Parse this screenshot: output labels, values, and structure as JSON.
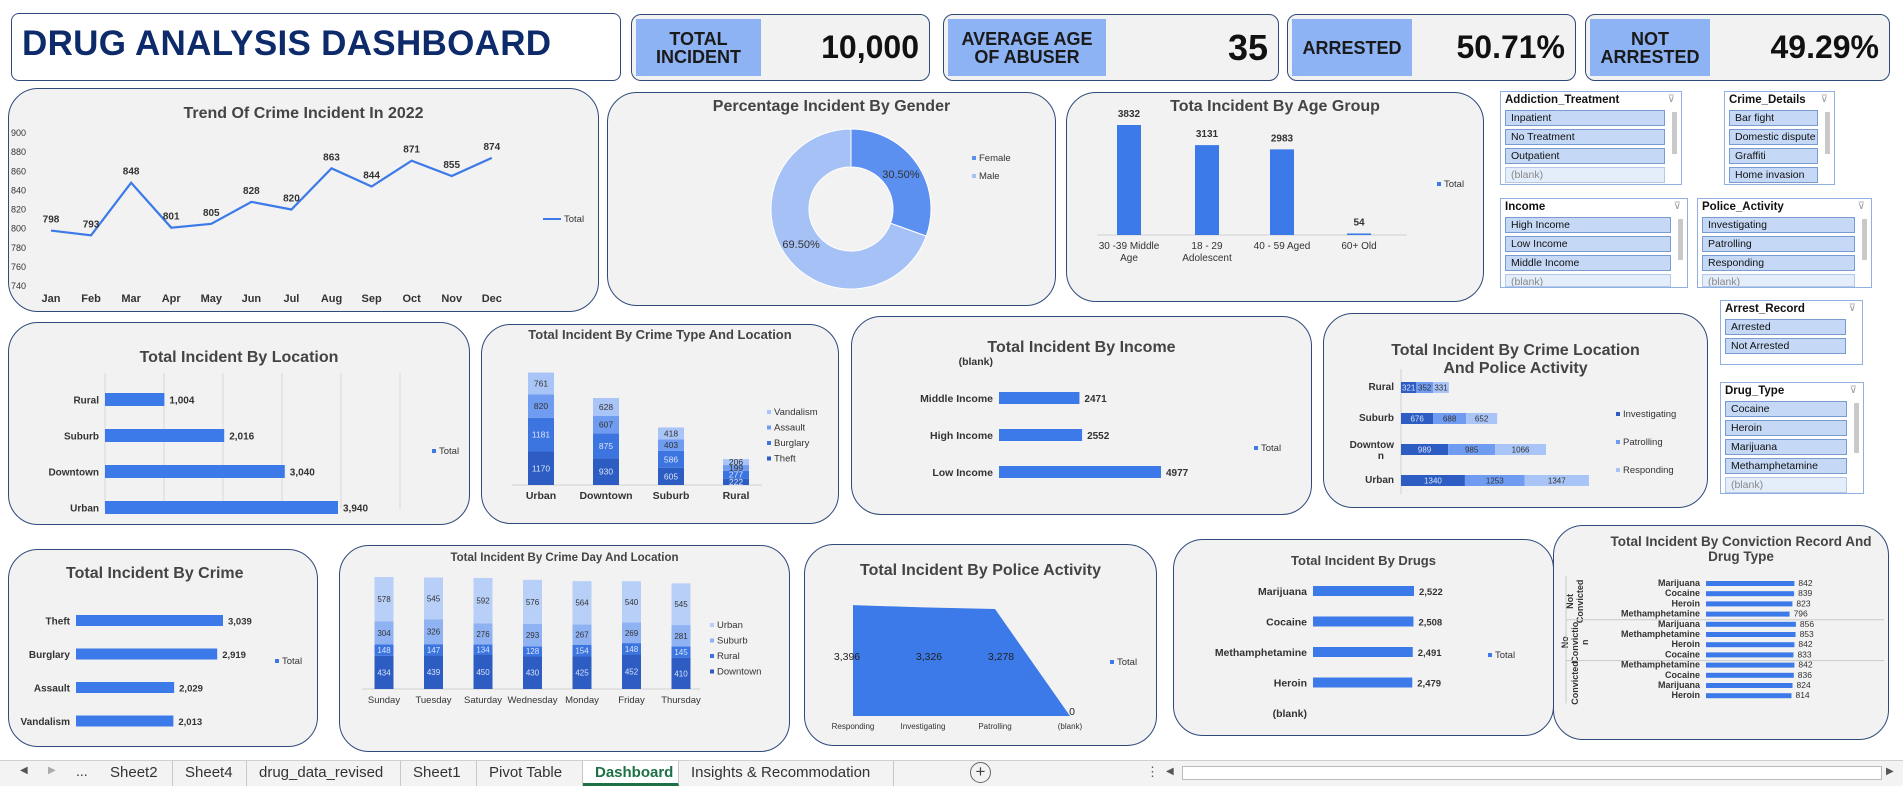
{
  "title": "DRUG ANALYSIS DASHBOARD",
  "kpis": [
    {
      "label": "TOTAL INCIDENT",
      "value": "10,000"
    },
    {
      "label": "AVERAGE AGE OF ABUSER",
      "value": "35"
    },
    {
      "label": "ARRESTED",
      "value": "50.71%"
    },
    {
      "label": "NOT ARRESTED",
      "value": "49.29%"
    }
  ],
  "colors": {
    "accent": "#3b7ae8",
    "mid": "#5b8ff0",
    "light": "#a6c1f5",
    "dark": "#2c5bbd",
    "border": "#2f4a7a",
    "title": "#0d2a6b"
  },
  "charts": {
    "trend": {
      "type": "line",
      "title": "Trend Of Crime Incident In 2022",
      "x": [
        "Jan",
        "Feb",
        "Mar",
        "Apr",
        "May",
        "Jun",
        "Jul",
        "Aug",
        "Sep",
        "Oct",
        "Nov",
        "Dec"
      ],
      "values": [
        798,
        793,
        848,
        801,
        805,
        828,
        820,
        863,
        844,
        871,
        855,
        874
      ],
      "ylim": [
        740,
        900
      ],
      "yticks": [
        "740",
        "760",
        "780",
        "800",
        "820",
        "840",
        "860",
        "880",
        "900"
      ],
      "legend": "Total"
    },
    "gender": {
      "type": "pie",
      "title": "Percentage Incident By  Gender",
      "slices": [
        {
          "name": "Female",
          "value": 30.5,
          "label": "30.50%"
        },
        {
          "name": "Male",
          "value": 69.5,
          "label": "69.50%"
        }
      ]
    },
    "age": {
      "type": "bar",
      "title": "Tota Incident By Age Group",
      "categories": [
        [
          "30 -39 Middle",
          "Age"
        ],
        [
          "18 - 29",
          "Adolescent"
        ],
        [
          "40 - 59  Aged",
          ""
        ],
        [
          "60+ Old",
          ""
        ]
      ],
      "values": [
        3832,
        3131,
        2983,
        54
      ],
      "legend": "Total"
    },
    "location": {
      "type": "bar",
      "title": "Total Incident By Location",
      "categories": [
        "Rural",
        "Suburb",
        "Downtown",
        "Urban"
      ],
      "values": [
        1004,
        2016,
        3040,
        3940
      ],
      "labels": [
        "1,004",
        "2,016",
        "3,040",
        "3,940"
      ],
      "legend": "Total"
    },
    "crimeTypeLoc": {
      "type": "bar",
      "title": "Total Incident By Crime Type And Location",
      "categories": [
        "Urban",
        "Downtown",
        "Suburb",
        "Rural"
      ],
      "series": [
        {
          "name": "Theft",
          "values": [
            1170,
            930,
            605,
            222
          ]
        },
        {
          "name": "Burglary",
          "values": [
            1181,
            875,
            586,
            277
          ]
        },
        {
          "name": "Assault",
          "values": [
            820,
            607,
            403,
            199
          ]
        },
        {
          "name": "Vandalism",
          "values": [
            761,
            628,
            418,
            206
          ]
        }
      ],
      "legend_order": [
        "Vandalism",
        "Assault",
        "Burglary",
        "Theft"
      ]
    },
    "income": {
      "type": "bar",
      "title": "Total Incident By Income",
      "categories": [
        "(blank)",
        "Middle Income",
        "High Income",
        "Low Income"
      ],
      "values": [
        0,
        2471,
        2552,
        4977
      ],
      "labels": [
        "",
        "2471",
        "2552",
        "4977"
      ],
      "legend": "Total"
    },
    "locPolice": {
      "type": "bar",
      "title": "Total Incident By Crime Location And Police Activity",
      "categories": [
        "Rural",
        "Suburb",
        "Downtown",
        "Urban"
      ],
      "series": [
        {
          "name": "Investigating",
          "values": [
            321,
            676,
            989,
            1340
          ]
        },
        {
          "name": "Patrolling",
          "values": [
            352,
            688,
            985,
            1253
          ]
        },
        {
          "name": "Responding",
          "values": [
            331,
            652,
            1066,
            1347
          ]
        }
      ]
    },
    "crime": {
      "type": "bar",
      "title": "Total Incident By Crime",
      "categories": [
        "Theft",
        "Burglary",
        "Assault",
        "Vandalism"
      ],
      "values": [
        3039,
        2919,
        2029,
        2013
      ],
      "labels": [
        "3,039",
        "2,919",
        "2,029",
        "2,013"
      ],
      "legend": "Total"
    },
    "dayLoc": {
      "type": "bar",
      "title": "Total Incident By Crime Day And Location",
      "categories": [
        "Sunday",
        "Tuesday",
        "Saturday",
        "Wednesday",
        "Monday",
        "Friday",
        "Thursday"
      ],
      "series": [
        {
          "name": "Downtown",
          "values": [
            434,
            439,
            450,
            430,
            425,
            452,
            410
          ]
        },
        {
          "name": "Rural",
          "values": [
            148,
            147,
            134,
            128,
            154,
            148,
            145
          ]
        },
        {
          "name": "Suburb",
          "values": [
            304,
            326,
            276,
            293,
            267,
            269,
            281
          ]
        },
        {
          "name": "Urban",
          "values": [
            578,
            545,
            592,
            576,
            564,
            540,
            545
          ]
        }
      ],
      "legend_order": [
        "Urban",
        "Suburb",
        "Rural",
        "Downtown"
      ]
    },
    "police": {
      "type": "area",
      "title": "Total Incident By Police Activity",
      "categories": [
        "Responding",
        "Investigating",
        "Patrolling",
        "(blank)"
      ],
      "values": [
        3396,
        3326,
        3278,
        0
      ],
      "labels": [
        "3,396",
        "3,326",
        "3,278",
        "0"
      ],
      "legend": "Total"
    },
    "drugs": {
      "type": "bar",
      "title": "Total Incident By Drugs",
      "categories": [
        "Marijuana",
        "Cocaine",
        "Methamphetamine",
        "Heroin",
        "(blank)"
      ],
      "values": [
        2522,
        2508,
        2491,
        2479,
        0
      ],
      "labels": [
        "2,522",
        "2,508",
        "2,491",
        "2,479",
        ""
      ],
      "legend": "Total"
    },
    "conviction": {
      "type": "bar",
      "title": "Total Incident By Conviction Record And Drug Type",
      "groups": [
        {
          "name": "Not Convicted",
          "items": [
            {
              "drug": "Marijuana",
              "value": 842
            },
            {
              "drug": "Cocaine",
              "value": 839
            },
            {
              "drug": "Heroin",
              "value": 823
            },
            {
              "drug": "Methamphetamine",
              "value": 796
            }
          ]
        },
        {
          "name": "No Conviction",
          "items": [
            {
              "drug": "Marijuana",
              "value": 856
            },
            {
              "drug": "Methamphetamine",
              "value": 853
            },
            {
              "drug": "Heroin",
              "value": 842
            },
            {
              "drug": "Cocaine",
              "value": 833
            }
          ]
        },
        {
          "name": "Convicted",
          "items": [
            {
              "drug": "Methamphetamine",
              "value": 842
            },
            {
              "drug": "Cocaine",
              "value": 836
            },
            {
              "drug": "Marijuana",
              "value": 824
            },
            {
              "drug": "Heroin",
              "value": 814
            }
          ]
        }
      ]
    }
  },
  "slicers": [
    {
      "id": "addiction",
      "title": "Addiction_Treatment",
      "items": [
        "Inpatient",
        "No Treatment",
        "Outpatient",
        "(blank)"
      ]
    },
    {
      "id": "crime",
      "title": "Crime_Details",
      "items": [
        "Bar fight",
        "Domestic dispute",
        "Graffiti",
        "Home invasion"
      ]
    },
    {
      "id": "income",
      "title": "Income",
      "items": [
        "High Income",
        "Low Income",
        "Middle Income",
        "(blank)"
      ]
    },
    {
      "id": "police",
      "title": "Police_Activity",
      "items": [
        "Investigating",
        "Patrolling",
        "Responding",
        "(blank)"
      ]
    },
    {
      "id": "arrest",
      "title": "Arrest_Record",
      "items": [
        "Arrested",
        "Not Arrested"
      ]
    },
    {
      "id": "drug",
      "title": "Drug_Type",
      "items": [
        "Cocaine",
        "Heroin",
        "Marijuana",
        "Methamphetamine",
        "(blank)"
      ]
    }
  ],
  "tabs": [
    "Sheet2",
    "Sheet4",
    "drug_data_revised",
    "Sheet1",
    "Pivot Table",
    "Dashboard",
    "Insights & Recommodation"
  ],
  "active_tab": "Dashboard",
  "nav": {
    "prev": "◀",
    "next": "▶",
    "more": "...",
    "add": "+",
    "options": "⋮",
    "scroll_left": "◀",
    "scroll_right": "▶"
  }
}
